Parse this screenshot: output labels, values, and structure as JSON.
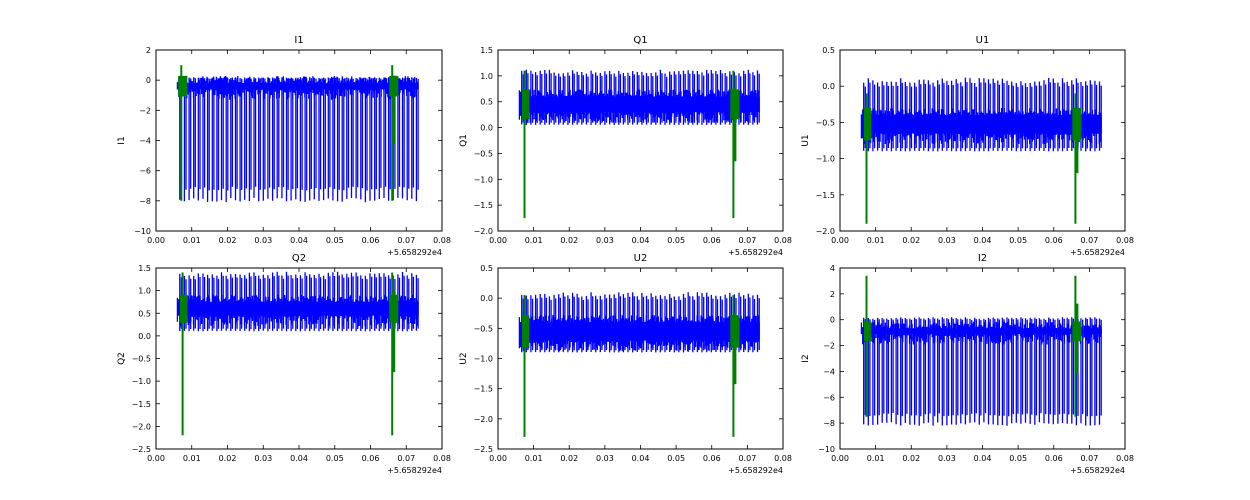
{
  "chart_data": [
    {
      "type": "line",
      "title": "I1",
      "ylabel": "I1",
      "xlabel": "",
      "x_offset_label": "+5.658292e4",
      "xlim": [
        0.0,
        0.08
      ],
      "ylim": [
        -10,
        2
      ],
      "xticks": [
        0.0,
        0.01,
        0.02,
        0.03,
        0.04,
        0.05,
        0.06,
        0.07,
        0.08
      ],
      "xtick_labels": [
        "0.00",
        "0.01",
        "0.02",
        "0.03",
        "0.04",
        "0.05",
        "0.06",
        "0.07",
        "0.08"
      ],
      "yticks": [
        -10,
        -8,
        -6,
        -4,
        -2,
        0,
        2
      ],
      "ytick_labels": [
        "−10",
        "−8",
        "−6",
        "−4",
        "−2",
        "0",
        "2"
      ],
      "series": [
        {
          "color": "#0000ff",
          "x_range": [
            0.006,
            0.0735
          ],
          "spike_count": 52,
          "baseline": -0.4,
          "band": [
            -0.6,
            -0.2
          ],
          "spike_low": -8.1,
          "spike_high": 0.2
        },
        {
          "color": "#008000",
          "segments": [
            [
              0.0065,
              0.0085
            ],
            [
              0.0655,
              0.0675
            ]
          ],
          "low": -8.0,
          "high": 1.0
        }
      ]
    },
    {
      "type": "line",
      "title": "Q1",
      "ylabel": "Q1",
      "xlabel": "",
      "x_offset_label": "+5.658292e4",
      "xlim": [
        0.0,
        0.08
      ],
      "ylim": [
        -2.0,
        1.5
      ],
      "xticks": [
        0.0,
        0.01,
        0.02,
        0.03,
        0.04,
        0.05,
        0.06,
        0.07,
        0.08
      ],
      "xtick_labels": [
        "0.00",
        "0.01",
        "0.02",
        "0.03",
        "0.04",
        "0.05",
        "0.06",
        "0.07",
        "0.08"
      ],
      "yticks": [
        -2.0,
        -1.5,
        -1.0,
        -0.5,
        0.0,
        0.5,
        1.0,
        1.5
      ],
      "ytick_labels": [
        "−2.0",
        "−1.5",
        "−1.0",
        "−0.5",
        "0.0",
        "0.5",
        "1.0",
        "1.5"
      ],
      "series": [
        {
          "color": "#0000ff",
          "x_range": [
            0.006,
            0.0735
          ],
          "spike_count": 52,
          "baseline": 0.45,
          "band": [
            0.3,
            0.6
          ],
          "spike_low": 0.05,
          "spike_high": 1.12
        },
        {
          "color": "#008000",
          "segments": [
            [
              0.007,
              0.0085
            ],
            [
              0.0655,
              0.0675
            ]
          ],
          "low": -1.75,
          "high": 1.1
        }
      ]
    },
    {
      "type": "line",
      "title": "U1",
      "ylabel": "U1",
      "xlabel": "",
      "x_offset_label": "+5.658292e4",
      "xlim": [
        0.0,
        0.08
      ],
      "ylim": [
        -2.0,
        0.5
      ],
      "xticks": [
        0.0,
        0.01,
        0.02,
        0.03,
        0.04,
        0.05,
        0.06,
        0.07,
        0.08
      ],
      "xtick_labels": [
        "0.00",
        "0.01",
        "0.02",
        "0.03",
        "0.04",
        "0.05",
        "0.06",
        "0.07",
        "0.08"
      ],
      "yticks": [
        -2.0,
        -1.5,
        -1.0,
        -0.5,
        0.0,
        0.5
      ],
      "ytick_labels": [
        "−2.0",
        "−1.5",
        "−1.0",
        "−0.5",
        "0.0",
        "0.5"
      ],
      "series": [
        {
          "color": "#0000ff",
          "x_range": [
            0.006,
            0.0735
          ],
          "spike_count": 52,
          "baseline": -0.5,
          "band": [
            -0.65,
            -0.4
          ],
          "spike_low": -0.9,
          "spike_high": 0.12
        },
        {
          "color": "#008000",
          "segments": [
            [
              0.007,
              0.0085
            ],
            [
              0.0655,
              0.0675
            ]
          ],
          "low": -1.9,
          "high": -0.1
        }
      ]
    },
    {
      "type": "line",
      "title": "Q2",
      "ylabel": "Q2",
      "xlabel": "",
      "x_offset_label": "+5.658292e4",
      "xlim": [
        0.0,
        0.08
      ],
      "ylim": [
        -2.5,
        1.5
      ],
      "xticks": [
        0.0,
        0.01,
        0.02,
        0.03,
        0.04,
        0.05,
        0.06,
        0.07,
        0.08
      ],
      "xtick_labels": [
        "0.00",
        "0.01",
        "0.02",
        "0.03",
        "0.04",
        "0.05",
        "0.06",
        "0.07",
        "0.08"
      ],
      "yticks": [
        -2.5,
        -2.0,
        -1.5,
        -1.0,
        -0.5,
        0.0,
        0.5,
        1.0,
        1.5
      ],
      "ytick_labels": [
        "−2.5",
        "−2.0",
        "−1.5",
        "−1.0",
        "−0.5",
        "0.0",
        "0.5",
        "1.0",
        "1.5"
      ],
      "series": [
        {
          "color": "#0000ff",
          "x_range": [
            0.006,
            0.0735
          ],
          "spike_count": 52,
          "baseline": 0.6,
          "band": [
            0.45,
            0.75
          ],
          "spike_low": 0.1,
          "spike_high": 1.42
        },
        {
          "color": "#008000",
          "segments": [
            [
              0.007,
              0.0085
            ],
            [
              0.0655,
              0.0675
            ]
          ],
          "low": -2.2,
          "high": 1.4
        }
      ]
    },
    {
      "type": "line",
      "title": "U2",
      "ylabel": "U2",
      "xlabel": "",
      "x_offset_label": "+5.658292e4",
      "xlim": [
        0.0,
        0.08
      ],
      "ylim": [
        -2.5,
        0.5
      ],
      "xticks": [
        0.0,
        0.01,
        0.02,
        0.03,
        0.04,
        0.05,
        0.06,
        0.07,
        0.08
      ],
      "xtick_labels": [
        "0.00",
        "0.01",
        "0.02",
        "0.03",
        "0.04",
        "0.05",
        "0.06",
        "0.07",
        "0.08"
      ],
      "yticks": [
        -2.5,
        -2.0,
        -1.5,
        -1.0,
        -0.5,
        0.0,
        0.5
      ],
      "ytick_labels": [
        "−2.5",
        "−2.0",
        "−1.5",
        "−1.0",
        "−0.5",
        "0.0",
        "0.5"
      ],
      "series": [
        {
          "color": "#0000ff",
          "x_range": [
            0.006,
            0.0735
          ],
          "spike_count": 52,
          "baseline": -0.55,
          "band": [
            -0.7,
            -0.4
          ],
          "spike_low": -0.9,
          "spike_high": 0.1
        },
        {
          "color": "#008000",
          "segments": [
            [
              0.007,
              0.0085
            ],
            [
              0.0655,
              0.0675
            ]
          ],
          "low": -2.3,
          "high": 0.05
        }
      ]
    },
    {
      "type": "line",
      "title": "I2",
      "ylabel": "I2",
      "xlabel": "",
      "x_offset_label": "+5.658292e4",
      "xlim": [
        0.0,
        0.08
      ],
      "ylim": [
        -10,
        4
      ],
      "xticks": [
        0.0,
        0.01,
        0.02,
        0.03,
        0.04,
        0.05,
        0.06,
        0.07,
        0.08
      ],
      "xtick_labels": [
        "0.00",
        "0.01",
        "0.02",
        "0.03",
        "0.04",
        "0.05",
        "0.06",
        "0.07",
        "0.08"
      ],
      "yticks": [
        -10,
        -8,
        -6,
        -4,
        -2,
        0,
        2,
        4
      ],
      "ytick_labels": [
        "−10",
        "−8",
        "−6",
        "−4",
        "−2",
        "0",
        "2",
        "4"
      ],
      "series": [
        {
          "color": "#0000ff",
          "x_range": [
            0.006,
            0.0735
          ],
          "spike_count": 52,
          "baseline": -0.9,
          "band": [
            -1.1,
            -0.7
          ],
          "spike_low": -8.2,
          "spike_high": 0.2
        },
        {
          "color": "#008000",
          "segments": [
            [
              0.007,
              0.0085
            ],
            [
              0.0655,
              0.0675
            ]
          ],
          "low": -7.5,
          "high": 3.4
        }
      ]
    }
  ]
}
